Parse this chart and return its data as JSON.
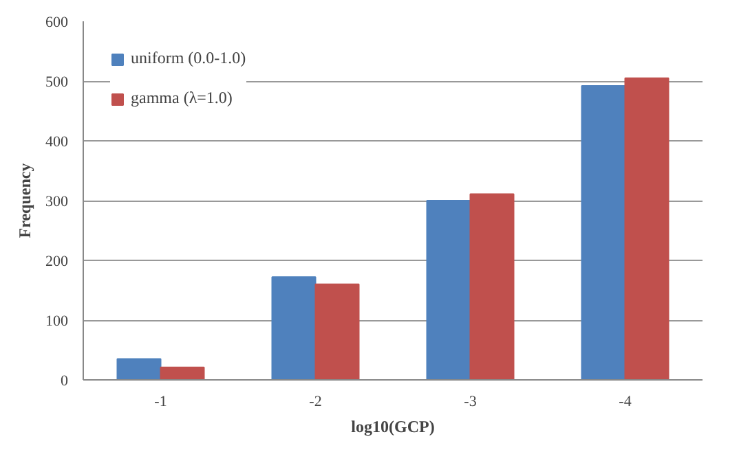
{
  "chart_data": {
    "type": "bar",
    "xlabel": "log10(GCP)",
    "ylabel": "Frequency",
    "categories": [
      "-1",
      "-2",
      "-3",
      "-4"
    ],
    "series": [
      {
        "name": "uniform (0.0-1.0)",
        "color": "#4f81bd",
        "values": [
          35,
          172,
          300,
          492
        ]
      },
      {
        "name": "gamma (λ=1.0)",
        "color": "#c0504d",
        "values": [
          21,
          160,
          311,
          505
        ]
      }
    ],
    "ylim": [
      0,
      600
    ],
    "yticks": [
      0,
      100,
      200,
      300,
      400,
      500,
      600
    ],
    "grid": "y",
    "legend": "top left"
  }
}
